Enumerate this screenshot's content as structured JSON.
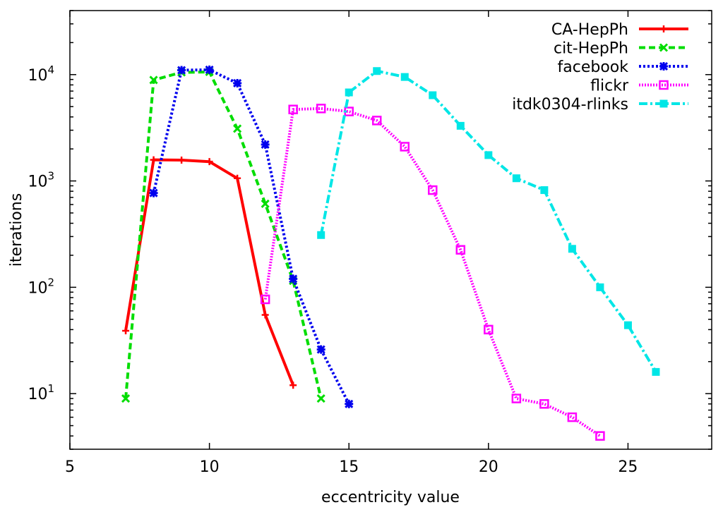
{
  "chart_data": {
    "type": "line",
    "title": "",
    "xlabel": "eccentricity value",
    "ylabel": "iterations",
    "xlim": [
      5,
      28
    ],
    "ylim": [
      3,
      40000
    ],
    "yscale": "log",
    "x_ticks": [
      5,
      10,
      15,
      20,
      25
    ],
    "y_ticks": [
      {
        "value": 10,
        "base": "10",
        "exp": "1"
      },
      {
        "value": 100,
        "base": "10",
        "exp": "2"
      },
      {
        "value": 1000,
        "base": "10",
        "exp": "3"
      },
      {
        "value": 10000,
        "base": "10",
        "exp": "4"
      }
    ],
    "legend_position": "top-right",
    "series": [
      {
        "name": "CA-HepPh",
        "color": "#ff0000",
        "dash": "solid",
        "marker": "plus",
        "points": [
          [
            7,
            39
          ],
          [
            8,
            1580
          ],
          [
            9,
            1570
          ],
          [
            10,
            1520
          ],
          [
            11,
            1060
          ],
          [
            12,
            55
          ],
          [
            13,
            12
          ]
        ]
      },
      {
        "name": "cit-HepPh",
        "color": "#00dd00",
        "dash": "dashed",
        "marker": "x",
        "points": [
          [
            7,
            9
          ],
          [
            8,
            8900
          ],
          [
            9,
            10500
          ],
          [
            10,
            10600
          ],
          [
            11,
            3100
          ],
          [
            12,
            610
          ],
          [
            13,
            115
          ],
          [
            14,
            9
          ]
        ]
      },
      {
        "name": "facebook",
        "color": "#0000ee",
        "dash": "dotted",
        "marker": "star",
        "points": [
          [
            8,
            770
          ],
          [
            9,
            11000
          ],
          [
            10,
            11100
          ],
          [
            11,
            8300
          ],
          [
            12,
            2200
          ],
          [
            13,
            120
          ],
          [
            14,
            26
          ],
          [
            15,
            8
          ]
        ]
      },
      {
        "name": "flickr",
        "color": "#ff00ff",
        "dash": "fine-dotted",
        "marker": "square-open",
        "points": [
          [
            12,
            77
          ],
          [
            13,
            4700
          ],
          [
            14,
            4800
          ],
          [
            15,
            4500
          ],
          [
            16,
            3700
          ],
          [
            17,
            2100
          ],
          [
            18,
            820
          ],
          [
            19,
            225
          ],
          [
            20,
            40
          ],
          [
            21,
            9
          ],
          [
            22,
            8
          ],
          [
            23,
            6
          ],
          [
            24,
            4
          ]
        ]
      },
      {
        "name": "itdk0304-rlinks",
        "color": "#00e6e6",
        "dash": "dash-dot",
        "marker": "square-filled",
        "points": [
          [
            14,
            310
          ],
          [
            15,
            6800
          ],
          [
            16,
            10800
          ],
          [
            17,
            9500
          ],
          [
            18,
            6400
          ],
          [
            19,
            3300
          ],
          [
            20,
            1750
          ],
          [
            21,
            1060
          ],
          [
            22,
            820
          ],
          [
            23,
            230
          ],
          [
            24,
            100
          ],
          [
            25,
            44
          ],
          [
            26,
            16
          ]
        ]
      }
    ]
  }
}
